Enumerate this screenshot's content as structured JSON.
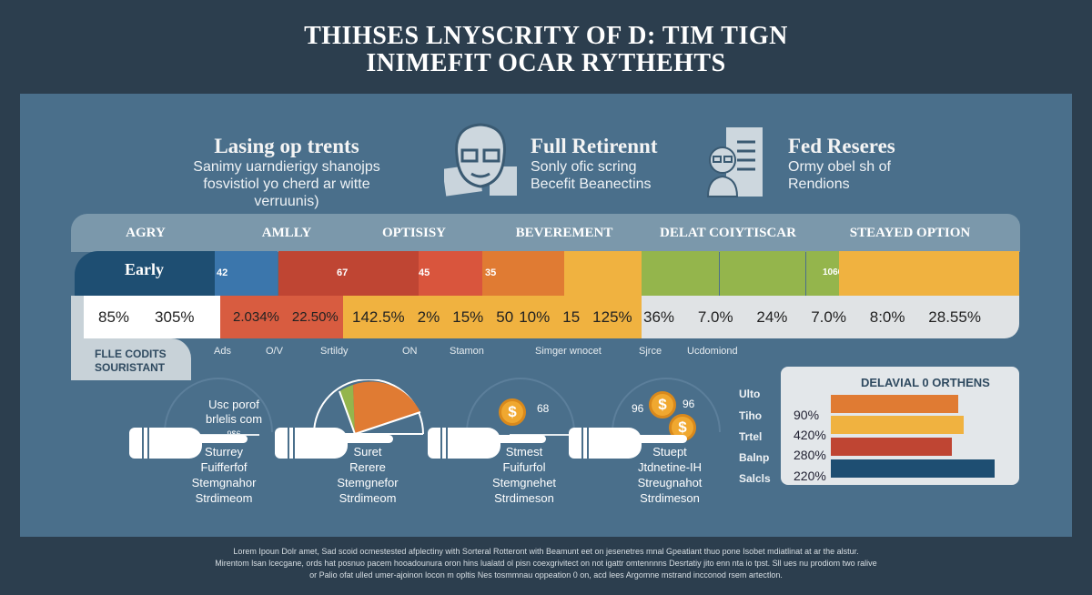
{
  "title": {
    "line1": "THIHSES LNYSCRITY OF D: TIM TIGN",
    "line2": "INIMEFIT OCAR RYTHEHTS"
  },
  "header": [
    {
      "title": "Lasing op trents",
      "sub1": "Sanimy uarndierigy shanojps",
      "sub2": "fosvistiol yo cherd ar witte verruunis)"
    },
    {
      "title": "Full Retirennt",
      "sub1": "Sonly ofic scring",
      "sub2": "Becefit Beanectins",
      "icon": "elderly-person-icon"
    },
    {
      "title": "Fed Reseres",
      "sub1": "Ormy obel sh of",
      "sub2": "Rendions",
      "icon": "person-document-icon"
    }
  ],
  "table": {
    "headers": [
      "AGRY",
      "AMLLY",
      "OPTISISY",
      "BEVEREMENT",
      "DELAT COIYTISCAR",
      "STEAYED OPTION"
    ],
    "first_label": "Early",
    "bar_numbers": [
      "42",
      "67",
      "45",
      "35",
      "1066"
    ],
    "values_white": [
      "85%",
      "305%"
    ],
    "values_red": [
      "2.034%",
      "22.50%"
    ],
    "values_yellow": [
      "142.5%",
      "2%",
      "15%",
      "50",
      "10%",
      "15",
      "125%"
    ],
    "values_gray": [
      "36%",
      "7.0%",
      "24%",
      "7.0%",
      "8:0%",
      "28.55%"
    ],
    "side_label_1": "FLLE CODITS",
    "side_label_2": "SOURISTANT",
    "sub_labels": [
      "Ads",
      "O/V",
      "Srtildy",
      "ON",
      "Stamon",
      "Simger wnocet",
      "Sjrce",
      "Ucdomiond"
    ],
    "colors": {
      "navy": "#1e4e72",
      "blue": "#3b76ac",
      "red": "#bf4533",
      "orange": "#e07b33",
      "yellow": "#f0b240",
      "green": "#94b54c"
    }
  },
  "gauges": [
    {
      "top1": "Usc porof",
      "top2": "brlelis com",
      "top3": "9$6",
      "lines": [
        "Sturrey",
        "Fuifferfof",
        "Stemgnahor",
        "Strdimeom"
      ]
    },
    {
      "lines": [
        "Suret",
        "Rerere",
        "Stemgnefor",
        "Strdimeom"
      ]
    },
    {
      "coin_label": "68",
      "lines": [
        "Stmest",
        "Fuifurfol",
        "Stemgnehet",
        "Strdimeson"
      ]
    },
    {
      "coin_left": "96",
      "coin_right": "96",
      "lines": [
        "Stuept",
        "Jtdnetine-IH",
        "Streugnahot",
        "Strdimeson"
      ]
    }
  ],
  "bar_card": {
    "title": "DELAVIAL 0 ORTHENS",
    "y_labels": [
      "Ulto",
      "Tiho",
      "Trtel",
      "Balnp",
      "Salcls"
    ],
    "pct_labels": [
      "90%",
      "420%",
      "280%",
      "220%"
    ],
    "bars": [
      {
        "fraction": 0.78,
        "color": "#e07b33"
      },
      {
        "fraction": 0.81,
        "color": "#f0b240"
      },
      {
        "fraction": 0.74,
        "color": "#bf4533"
      },
      {
        "fraction": 1.0,
        "color": "#1e4e72"
      }
    ]
  },
  "footer": [
    "Lorem Ipoun Dolr amet, Sad scoid ocmestested afplectiny with Sorteral Rotteront with Beamunt eet on jesenetres mnal Gpeatiant thuo pone Isobet mdiatlinat at ar the alstur.",
    "Mirentom lsan lcecgane, ords hat posnuo pacem hooadounura oron hins lualatd ol pisn coexgrivitect on not igattr omtennnns Desrtatiy jito enn nta io tpst. Sll ues nu prodiom two ralive",
    "or Palio ofat ulled umer-ajoinon locon m opltis Nes tosmmnau oppeation 0 on, acd lees Argomne mstrand incconod rsem artectlon."
  ]
}
